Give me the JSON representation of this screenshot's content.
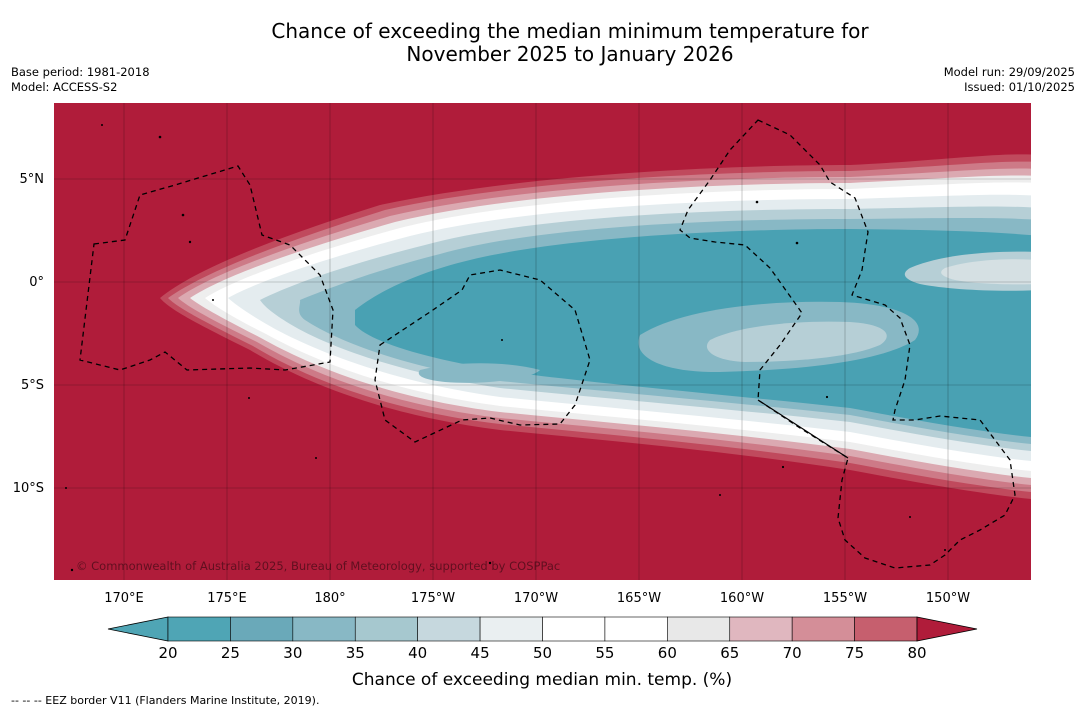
{
  "title": {
    "line1": "Chance of exceeding the median minimum temperature for",
    "line2": "November 2025 to January 2026"
  },
  "meta_left": {
    "base_period": "Base period: 1981-2018",
    "model": "Model: ACCESS-S2"
  },
  "meta_right": {
    "model_run": "Model run: 29/09/2025",
    "issued": "Issued: 01/10/2025"
  },
  "map": {
    "lon_labels": [
      "170°E",
      "175°E",
      "180°",
      "175°W",
      "170°W",
      "165°W",
      "160°W",
      "155°W",
      "150°W"
    ],
    "lat_labels": [
      "5°N",
      "0°",
      "5°S",
      "10°S"
    ],
    "copyright": "© Commonwealth of Australia 2025, Bureau of Meteorology, supported by COSPPac",
    "colors": {
      "hot": "#b01c3a",
      "cool": "#49a1b3",
      "white": "#ffffff"
    }
  },
  "colorbar": {
    "ticks": [
      "20",
      "25",
      "30",
      "35",
      "40",
      "45",
      "50",
      "55",
      "60",
      "65",
      "70",
      "75",
      "80"
    ],
    "label": "Chance of exceeding median min. temp. (%)",
    "colors": [
      "#4fa5b5",
      "#6aa9b9",
      "#88b8c5",
      "#a6c8cf",
      "#c6d8de",
      "#eaeff1",
      "#ffffff",
      "#ffffff",
      "#e8e8e8",
      "#e0b7bf",
      "#d48e98",
      "#c65f6e",
      "#b8394e",
      "#b01c3a"
    ]
  },
  "footer": "--  --  -- EEZ border V11 (Flanders Marine Institute, 2019)."
}
